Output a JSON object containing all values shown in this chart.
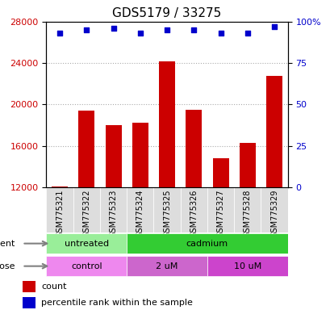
{
  "title": "GDS5179 / 33275",
  "samples": [
    "GSM775321",
    "GSM775322",
    "GSM775323",
    "GSM775324",
    "GSM775325",
    "GSM775326",
    "GSM775327",
    "GSM775328",
    "GSM775329"
  ],
  "counts": [
    12100,
    19400,
    18000,
    18200,
    24200,
    19500,
    14800,
    16300,
    22800
  ],
  "percentile_ranks": [
    93,
    95,
    96,
    93,
    95,
    95,
    93,
    93,
    97
  ],
  "ylim_left": [
    12000,
    28000
  ],
  "ylim_right": [
    0,
    100
  ],
  "yticks_left": [
    12000,
    16000,
    20000,
    24000,
    28000
  ],
  "yticks_right": [
    0,
    25,
    50,
    75,
    100
  ],
  "bar_color": "#cc0000",
  "scatter_color": "#0000cc",
  "agent_groups": [
    {
      "label": "untreated",
      "start": 0,
      "end": 3,
      "color": "#99ee99"
    },
    {
      "label": "cadmium",
      "start": 3,
      "end": 9,
      "color": "#33cc33"
    }
  ],
  "dose_groups": [
    {
      "label": "control",
      "start": 0,
      "end": 3,
      "color": "#ee88ee"
    },
    {
      "label": "2 uM",
      "start": 3,
      "end": 6,
      "color": "#cc66cc"
    },
    {
      "label": "10 uM",
      "start": 6,
      "end": 9,
      "color": "#cc44cc"
    }
  ],
  "legend_items": [
    {
      "color": "#cc0000",
      "label": "count"
    },
    {
      "color": "#0000cc",
      "label": "percentile rank within the sample"
    }
  ],
  "grid_color": "#aaaaaa",
  "background_color": "#ffffff",
  "tick_label_color_left": "#cc0000",
  "tick_label_color_right": "#0000cc"
}
